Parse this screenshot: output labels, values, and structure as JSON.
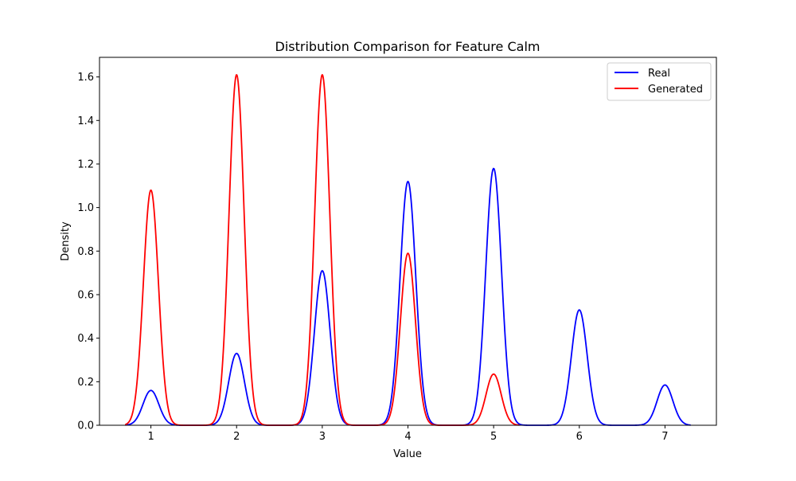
{
  "chart_data": {
    "type": "line",
    "title": "Distribution Comparison for Feature Calm",
    "xlabel": "Value",
    "ylabel": "Density",
    "xlim": [
      0.4,
      7.6
    ],
    "ylim": [
      0,
      1.69
    ],
    "x_ticks": [
      1,
      2,
      3,
      4,
      5,
      6,
      7
    ],
    "y_ticks": [
      0.0,
      0.2,
      0.4,
      0.6,
      0.8,
      1.0,
      1.2,
      1.4,
      1.6
    ],
    "x_tick_labels": [
      "1",
      "2",
      "3",
      "4",
      "5",
      "6",
      "7"
    ],
    "y_tick_labels": [
      "0.0",
      "0.2",
      "0.4",
      "0.6",
      "0.8",
      "1.0",
      "1.2",
      "1.4",
      "1.6"
    ],
    "grid": false,
    "legend_position": "top-right",
    "series": [
      {
        "name": "Real",
        "color": "#0000ff",
        "x_range": [
          0.7,
          7.3
        ],
        "peaks": [
          {
            "x": 1,
            "density": 0.16
          },
          {
            "x": 2,
            "density": 0.33
          },
          {
            "x": 3,
            "density": 0.71
          },
          {
            "x": 4,
            "density": 1.12
          },
          {
            "x": 5,
            "density": 1.18
          },
          {
            "x": 6,
            "density": 0.53
          },
          {
            "x": 7,
            "density": 0.185
          }
        ],
        "peak_width": 0.092
      },
      {
        "name": "Generated",
        "color": "#ff0000",
        "x_range": [
          0.7,
          5.3
        ],
        "peaks": [
          {
            "x": 1,
            "density": 1.08
          },
          {
            "x": 2,
            "density": 1.61
          },
          {
            "x": 3,
            "density": 1.61
          },
          {
            "x": 4,
            "density": 0.79
          },
          {
            "x": 5,
            "density": 0.235
          }
        ],
        "peak_width": 0.088
      }
    ]
  }
}
